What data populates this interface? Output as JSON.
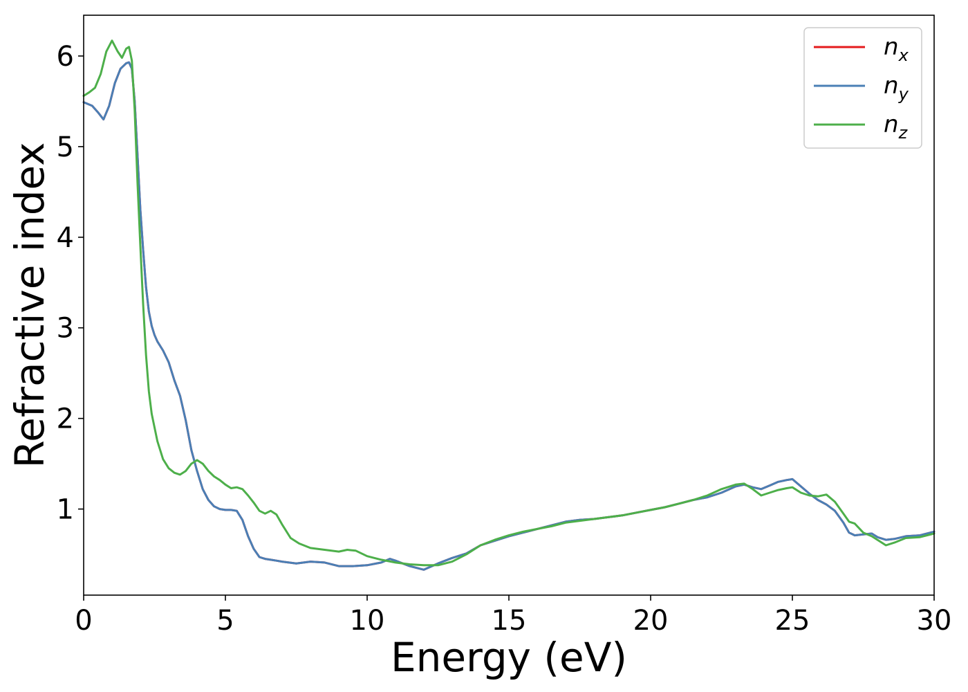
{
  "chart_data": {
    "type": "line",
    "xlabel": "Energy (eV)",
    "ylabel": "Refractive index",
    "xlim": [
      0,
      30
    ],
    "ylim": [
      0.05,
      6.45
    ],
    "xticks": [
      0,
      5,
      10,
      15,
      20,
      25,
      30
    ],
    "yticks": [
      1,
      2,
      3,
      4,
      5,
      6
    ],
    "grid": false,
    "legend_position": "top-right",
    "series": [
      {
        "name": "n",
        "subscript": "x",
        "color": "#e41a1c",
        "x": [
          0,
          0.3,
          0.5,
          0.7,
          0.9,
          1.1,
          1.3,
          1.5,
          1.6,
          1.7,
          1.8,
          1.9,
          2.0,
          2.1,
          2.2,
          2.3,
          2.4,
          2.5,
          2.6,
          2.8,
          3.0,
          3.2,
          3.4,
          3.6,
          3.8,
          4.0,
          4.2,
          4.4,
          4.6,
          4.8,
          5.0,
          5.2,
          5.4,
          5.6,
          5.8,
          6.0,
          6.2,
          6.4,
          6.6,
          6.8,
          7.0,
          7.5,
          8.0,
          8.5,
          9.0,
          9.5,
          10.0,
          10.5,
          10.8,
          11.0,
          11.5,
          12.0,
          12.5,
          13.0,
          13.5,
          14.0,
          14.5,
          15.0,
          15.5,
          16.0,
          16.5,
          17.0,
          17.5,
          18.0,
          18.5,
          19.0,
          19.5,
          20.0,
          20.5,
          21.0,
          21.5,
          22.0,
          22.5,
          23.0,
          23.3,
          23.6,
          23.9,
          24.2,
          24.5,
          24.8,
          25.0,
          25.3,
          25.6,
          25.9,
          26.2,
          26.5,
          26.8,
          27.0,
          27.2,
          27.5,
          27.8,
          28.0,
          28.3,
          28.6,
          29.0,
          29.5,
          30.0
        ],
        "y": [
          5.49,
          5.45,
          5.38,
          5.3,
          5.45,
          5.7,
          5.86,
          5.92,
          5.93,
          5.86,
          5.5,
          4.9,
          4.3,
          3.85,
          3.45,
          3.18,
          3.02,
          2.92,
          2.85,
          2.75,
          2.62,
          2.42,
          2.25,
          1.98,
          1.65,
          1.42,
          1.22,
          1.1,
          1.03,
          1.0,
          0.99,
          0.99,
          0.98,
          0.88,
          0.7,
          0.56,
          0.47,
          0.45,
          0.44,
          0.43,
          0.42,
          0.4,
          0.42,
          0.41,
          0.37,
          0.37,
          0.38,
          0.41,
          0.45,
          0.43,
          0.37,
          0.33,
          0.4,
          0.46,
          0.51,
          0.6,
          0.65,
          0.7,
          0.74,
          0.78,
          0.82,
          0.86,
          0.88,
          0.89,
          0.91,
          0.93,
          0.96,
          0.99,
          1.02,
          1.06,
          1.1,
          1.13,
          1.18,
          1.25,
          1.27,
          1.24,
          1.22,
          1.26,
          1.3,
          1.32,
          1.33,
          1.25,
          1.17,
          1.1,
          1.05,
          0.98,
          0.85,
          0.74,
          0.71,
          0.72,
          0.73,
          0.69,
          0.66,
          0.67,
          0.7,
          0.71,
          0.75
        ]
      },
      {
        "name": "n",
        "subscript": "y",
        "color": "#4a7fb5",
        "x": [
          0,
          0.3,
          0.5,
          0.7,
          0.9,
          1.1,
          1.3,
          1.5,
          1.6,
          1.7,
          1.8,
          1.9,
          2.0,
          2.1,
          2.2,
          2.3,
          2.4,
          2.5,
          2.6,
          2.8,
          3.0,
          3.2,
          3.4,
          3.6,
          3.8,
          4.0,
          4.2,
          4.4,
          4.6,
          4.8,
          5.0,
          5.2,
          5.4,
          5.6,
          5.8,
          6.0,
          6.2,
          6.4,
          6.6,
          6.8,
          7.0,
          7.5,
          8.0,
          8.5,
          9.0,
          9.5,
          10.0,
          10.5,
          10.8,
          11.0,
          11.5,
          12.0,
          12.5,
          13.0,
          13.5,
          14.0,
          14.5,
          15.0,
          15.5,
          16.0,
          16.5,
          17.0,
          17.5,
          18.0,
          18.5,
          19.0,
          19.5,
          20.0,
          20.5,
          21.0,
          21.5,
          22.0,
          22.5,
          23.0,
          23.3,
          23.6,
          23.9,
          24.2,
          24.5,
          24.8,
          25.0,
          25.3,
          25.6,
          25.9,
          26.2,
          26.5,
          26.8,
          27.0,
          27.2,
          27.5,
          27.8,
          28.0,
          28.3,
          28.6,
          29.0,
          29.5,
          30.0
        ],
        "y": [
          5.49,
          5.45,
          5.38,
          5.3,
          5.45,
          5.7,
          5.86,
          5.92,
          5.93,
          5.86,
          5.5,
          4.9,
          4.3,
          3.85,
          3.45,
          3.18,
          3.02,
          2.92,
          2.85,
          2.75,
          2.62,
          2.42,
          2.25,
          1.98,
          1.65,
          1.42,
          1.22,
          1.1,
          1.03,
          1.0,
          0.99,
          0.99,
          0.98,
          0.88,
          0.7,
          0.56,
          0.47,
          0.45,
          0.44,
          0.43,
          0.42,
          0.4,
          0.42,
          0.41,
          0.37,
          0.37,
          0.38,
          0.41,
          0.45,
          0.43,
          0.37,
          0.33,
          0.4,
          0.46,
          0.51,
          0.6,
          0.65,
          0.7,
          0.74,
          0.78,
          0.82,
          0.86,
          0.88,
          0.89,
          0.91,
          0.93,
          0.96,
          0.99,
          1.02,
          1.06,
          1.1,
          1.13,
          1.18,
          1.25,
          1.27,
          1.24,
          1.22,
          1.26,
          1.3,
          1.32,
          1.33,
          1.25,
          1.17,
          1.1,
          1.05,
          0.98,
          0.85,
          0.74,
          0.71,
          0.72,
          0.73,
          0.69,
          0.66,
          0.67,
          0.7,
          0.71,
          0.75
        ]
      },
      {
        "name": "n",
        "subscript": "z",
        "color": "#4daf4a",
        "x": [
          0,
          0.2,
          0.4,
          0.6,
          0.8,
          1.0,
          1.2,
          1.35,
          1.5,
          1.6,
          1.7,
          1.8,
          1.9,
          2.0,
          2.1,
          2.2,
          2.3,
          2.4,
          2.6,
          2.8,
          3.0,
          3.2,
          3.4,
          3.6,
          3.8,
          4.0,
          4.2,
          4.4,
          4.6,
          4.8,
          5.0,
          5.2,
          5.4,
          5.6,
          5.8,
          6.0,
          6.2,
          6.4,
          6.6,
          6.8,
          7.0,
          7.3,
          7.6,
          8.0,
          8.5,
          9.0,
          9.3,
          9.6,
          10.0,
          10.5,
          11.0,
          11.5,
          12.0,
          12.5,
          13.0,
          13.5,
          14.0,
          14.5,
          15.0,
          15.5,
          16.0,
          16.5,
          17.0,
          17.5,
          18.0,
          18.5,
          19.0,
          19.5,
          20.0,
          20.5,
          21.0,
          21.5,
          22.0,
          22.5,
          23.0,
          23.3,
          23.6,
          23.9,
          24.2,
          24.5,
          24.8,
          25.0,
          25.3,
          25.6,
          25.9,
          26.2,
          26.5,
          26.8,
          27.0,
          27.2,
          27.5,
          27.8,
          28.0,
          28.3,
          28.6,
          29.0,
          29.5,
          30.0
        ],
        "y": [
          5.56,
          5.6,
          5.65,
          5.8,
          6.05,
          6.17,
          6.05,
          5.98,
          6.08,
          6.1,
          5.95,
          5.4,
          4.6,
          3.9,
          3.25,
          2.7,
          2.3,
          2.05,
          1.75,
          1.55,
          1.45,
          1.4,
          1.38,
          1.42,
          1.5,
          1.54,
          1.5,
          1.42,
          1.36,
          1.32,
          1.27,
          1.23,
          1.24,
          1.22,
          1.15,
          1.07,
          0.98,
          0.95,
          0.98,
          0.94,
          0.83,
          0.68,
          0.62,
          0.57,
          0.55,
          0.53,
          0.55,
          0.54,
          0.48,
          0.44,
          0.41,
          0.39,
          0.38,
          0.38,
          0.42,
          0.5,
          0.6,
          0.66,
          0.71,
          0.75,
          0.78,
          0.81,
          0.85,
          0.87,
          0.89,
          0.91,
          0.93,
          0.96,
          0.99,
          1.02,
          1.06,
          1.1,
          1.15,
          1.22,
          1.27,
          1.28,
          1.22,
          1.15,
          1.18,
          1.21,
          1.23,
          1.24,
          1.18,
          1.15,
          1.14,
          1.16,
          1.08,
          0.95,
          0.86,
          0.84,
          0.74,
          0.7,
          0.66,
          0.6,
          0.63,
          0.68,
          0.69,
          0.73
        ]
      }
    ]
  }
}
